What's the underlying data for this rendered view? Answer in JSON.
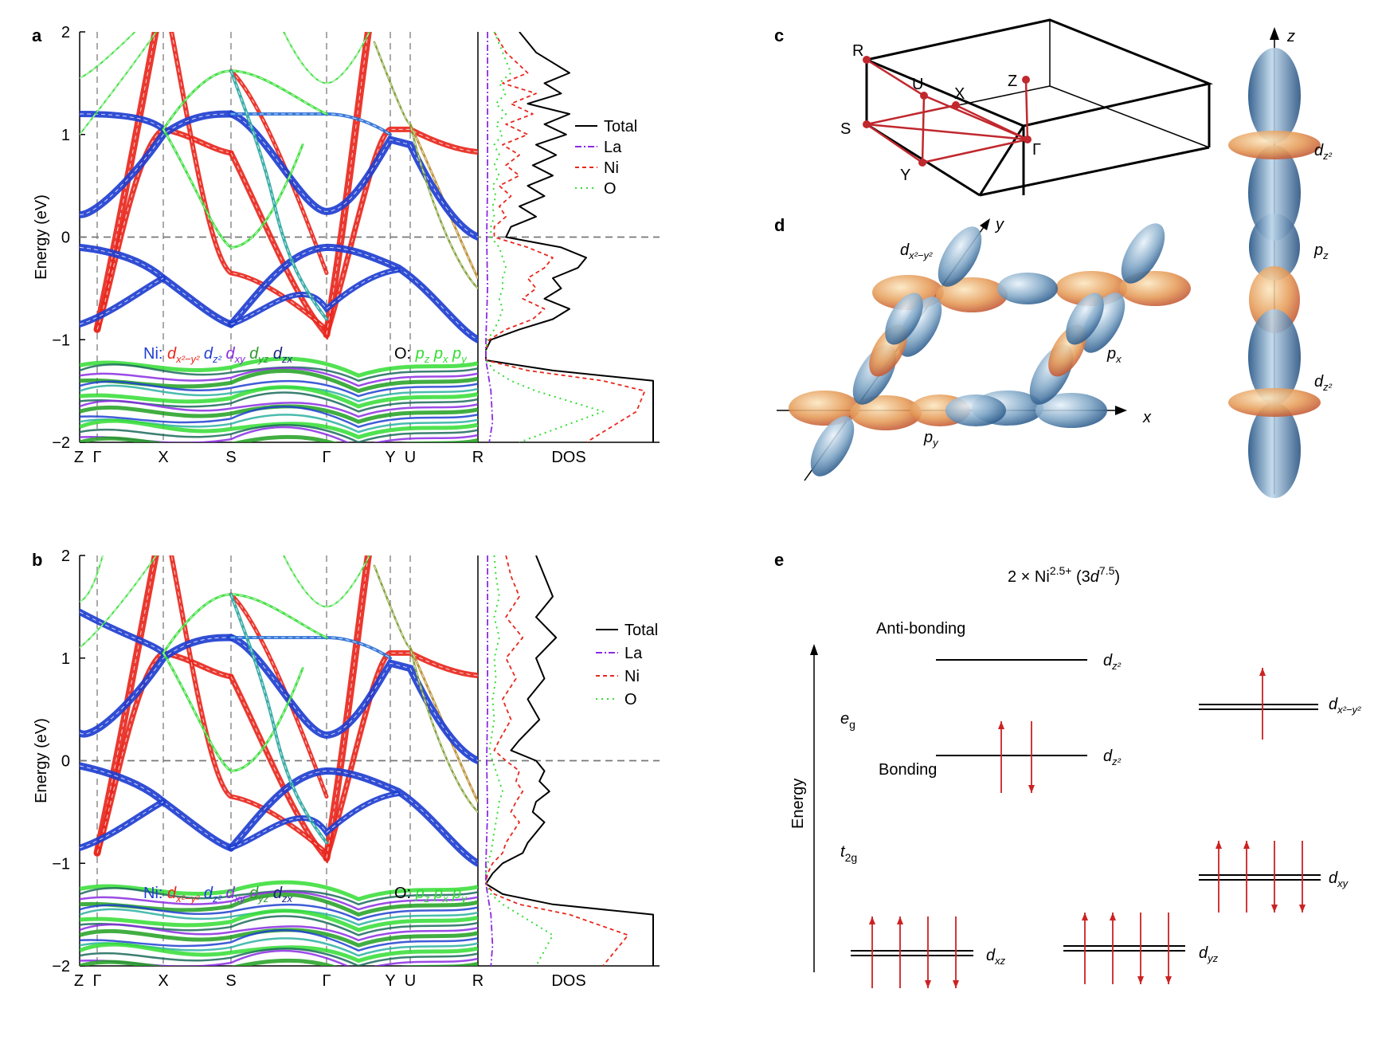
{
  "panels": {
    "a": "a",
    "b": "b",
    "c": "c",
    "d": "d",
    "e": "e"
  },
  "colors": {
    "dx2y2": "#e8281e",
    "dz2": "#1f3fd0",
    "dxy": "#8a2be2",
    "dyz": "#2e9a2e",
    "dzx": "#1a237e",
    "O": "#33dd33",
    "La": "#8a2be2",
    "Ni": "#e8281e",
    "total": "#000000",
    "bz": "#c0282e",
    "arrow": "#cc2222"
  },
  "chart_data": [
    {
      "type": "line",
      "panel": "a",
      "ylabel": "Energy (eV)",
      "xlabel": "DOS",
      "ylim": [
        -2,
        2
      ],
      "yticks": [
        2,
        1,
        0,
        -1,
        -2
      ],
      "kpath": [
        "Z",
        "Γ",
        "X",
        "S",
        "Γ",
        "Y",
        "U",
        "R"
      ],
      "legend": [
        {
          "name": "Total",
          "style": "solid"
        },
        {
          "name": "La",
          "style": "dashdot"
        },
        {
          "name": "Ni",
          "style": "dashed"
        },
        {
          "name": "O",
          "style": "dotted"
        }
      ],
      "orbital_legend": {
        "ni_label": "Ni:",
        "o_label": "O:"
      },
      "series": [
        {
          "name": "Total",
          "e": [
            2,
            1.8,
            1.6,
            1.5,
            1.4,
            1.3,
            1.2,
            1.1,
            1.0,
            0.9,
            0.8,
            0.7,
            0.6,
            0.5,
            0.4,
            0.3,
            0.2,
            0.1,
            0.0,
            -0.1,
            -0.2,
            -0.3,
            -0.4,
            -0.5,
            -0.6,
            -0.7,
            -0.8,
            -0.9,
            -1.0,
            -1.1,
            -1.2,
            -1.3,
            -1.4,
            -1.5,
            -1.7,
            -2.0
          ],
          "v": [
            0.2,
            0.3,
            0.5,
            0.35,
            0.45,
            0.25,
            0.5,
            0.35,
            0.48,
            0.3,
            0.42,
            0.28,
            0.4,
            0.25,
            0.35,
            0.2,
            0.3,
            0.15,
            0.12,
            0.45,
            0.6,
            0.55,
            0.4,
            0.45,
            0.35,
            0.5,
            0.4,
            0.2,
            0.03,
            0.0,
            0.0,
            0.4,
            1.0,
            1.0,
            1.0,
            1.0
          ]
        },
        {
          "name": "Ni",
          "e": [
            2,
            1.8,
            1.6,
            1.5,
            1.4,
            1.3,
            1.2,
            1.1,
            1.0,
            0.9,
            0.8,
            0.7,
            0.6,
            0.5,
            0.4,
            0.3,
            0.2,
            0.1,
            0.0,
            -0.1,
            -0.2,
            -0.3,
            -0.4,
            -0.5,
            -0.6,
            -0.7,
            -0.8,
            -0.9,
            -1.0,
            -1.1,
            -1.2,
            -1.3,
            -1.4,
            -1.5,
            -1.7,
            -2.0
          ],
          "v": [
            0.05,
            0.12,
            0.25,
            0.1,
            0.3,
            0.15,
            0.28,
            0.12,
            0.25,
            0.1,
            0.2,
            0.12,
            0.2,
            0.08,
            0.15,
            0.08,
            0.12,
            0.05,
            0.05,
            0.25,
            0.4,
            0.35,
            0.25,
            0.3,
            0.22,
            0.35,
            0.28,
            0.12,
            0.02,
            0.0,
            0.0,
            0.25,
            0.7,
            0.95,
            0.9,
            0.6
          ]
        },
        {
          "name": "O",
          "e": [
            2,
            1.8,
            1.6,
            1.5,
            1.4,
            1.3,
            1.2,
            1.1,
            1.0,
            0.9,
            0.8,
            0.7,
            0.6,
            0.5,
            0.4,
            0.3,
            0.2,
            0.1,
            0.0,
            -0.1,
            -0.2,
            -0.3,
            -0.4,
            -0.5,
            -0.6,
            -0.7,
            -0.8,
            -0.9,
            -1.0,
            -1.1,
            -1.2,
            -1.3,
            -1.4,
            -1.5,
            -1.7,
            -2.0
          ],
          "v": [
            0.05,
            0.1,
            0.15,
            0.08,
            0.12,
            0.06,
            0.12,
            0.06,
            0.1,
            0.05,
            0.08,
            0.05,
            0.08,
            0.04,
            0.06,
            0.04,
            0.05,
            0.03,
            0.03,
            0.08,
            0.1,
            0.12,
            0.1,
            0.1,
            0.08,
            0.1,
            0.08,
            0.05,
            0.01,
            0.0,
            0.0,
            0.05,
            0.15,
            0.3,
            0.7,
            0.2
          ]
        },
        {
          "name": "La",
          "e": [
            2,
            1.5,
            1.0,
            0.5,
            0.0,
            -0.5,
            -1.0,
            -1.2,
            -1.5,
            -1.8,
            -2.0
          ],
          "v": [
            0.01,
            0.01,
            0.01,
            0.01,
            0.005,
            0.01,
            0.0,
            0.0,
            0.03,
            0.04,
            0.02
          ]
        }
      ]
    },
    {
      "type": "line",
      "panel": "b",
      "ylabel": "Energy (eV)",
      "xlabel": "DOS",
      "ylim": [
        -2,
        2
      ],
      "yticks": [
        2,
        1,
        0,
        -1,
        -2
      ],
      "kpath": [
        "Z",
        "Γ",
        "X",
        "S",
        "Γ",
        "Y",
        "U",
        "R"
      ],
      "legend": [
        {
          "name": "Total",
          "style": "solid"
        },
        {
          "name": "La",
          "style": "dashdot"
        },
        {
          "name": "Ni",
          "style": "dashed"
        },
        {
          "name": "O",
          "style": "dotted"
        }
      ],
      "orbital_legend": {
        "ni_label": "Ni:",
        "o_label": "O:"
      },
      "series": [
        {
          "name": "Total",
          "e": [
            2,
            1.8,
            1.6,
            1.4,
            1.2,
            1.0,
            0.8,
            0.6,
            0.4,
            0.2,
            0.1,
            0.0,
            -0.1,
            -0.2,
            -0.3,
            -0.4,
            -0.5,
            -0.6,
            -0.7,
            -0.8,
            -0.9,
            -1.0,
            -1.1,
            -1.2,
            -1.3,
            -1.4,
            -1.5,
            -1.7,
            -2.0
          ],
          "v": [
            0.3,
            0.35,
            0.4,
            0.3,
            0.42,
            0.3,
            0.35,
            0.25,
            0.32,
            0.2,
            0.15,
            0.3,
            0.35,
            0.32,
            0.38,
            0.3,
            0.28,
            0.35,
            0.3,
            0.25,
            0.22,
            0.1,
            0.04,
            0.0,
            0.1,
            0.4,
            1.0,
            1.0,
            1.0
          ]
        },
        {
          "name": "Ni",
          "e": [
            2,
            1.8,
            1.6,
            1.4,
            1.2,
            1.0,
            0.8,
            0.6,
            0.4,
            0.2,
            0.1,
            0.0,
            -0.1,
            -0.2,
            -0.3,
            -0.4,
            -0.5,
            -0.6,
            -0.7,
            -0.8,
            -0.9,
            -1.0,
            -1.1,
            -1.2,
            -1.3,
            -1.4,
            -1.5,
            -1.7,
            -2.0
          ],
          "v": [
            0.12,
            0.15,
            0.2,
            0.12,
            0.22,
            0.12,
            0.18,
            0.1,
            0.15,
            0.08,
            0.05,
            0.12,
            0.2,
            0.18,
            0.22,
            0.18,
            0.15,
            0.2,
            0.16,
            0.12,
            0.1,
            0.04,
            0.01,
            0.0,
            0.05,
            0.2,
            0.5,
            0.85,
            0.7
          ]
        },
        {
          "name": "O",
          "e": [
            2,
            1.8,
            1.6,
            1.4,
            1.2,
            1.0,
            0.8,
            0.6,
            0.4,
            0.2,
            0.1,
            0.0,
            -0.1,
            -0.2,
            -0.3,
            -0.4,
            -0.5,
            -0.6,
            -0.7,
            -0.8,
            -0.9,
            -1.0,
            -1.1,
            -1.2,
            -1.3,
            -1.4,
            -1.5,
            -1.7,
            -2.0
          ],
          "v": [
            0.05,
            0.06,
            0.08,
            0.05,
            0.08,
            0.05,
            0.06,
            0.04,
            0.05,
            0.03,
            0.02,
            0.04,
            0.06,
            0.08,
            0.1,
            0.08,
            0.07,
            0.06,
            0.05,
            0.04,
            0.03,
            0.01,
            0.0,
            0.0,
            0.03,
            0.1,
            0.2,
            0.4,
            0.3
          ]
        },
        {
          "name": "La",
          "e": [
            2,
            1.5,
            1.0,
            0.5,
            0.0,
            -0.5,
            -1.0,
            -1.2,
            -1.5,
            -1.8,
            -2.0
          ],
          "v": [
            0.01,
            0.01,
            0.01,
            0.01,
            0.005,
            0.01,
            0.0,
            0.0,
            0.03,
            0.04,
            0.03
          ]
        }
      ]
    }
  ],
  "bz": {
    "points": [
      "R",
      "U",
      "X",
      "Z",
      "S",
      "Γ",
      "Y"
    ]
  },
  "orbitals": {
    "dx2y2_label": "x²−y²",
    "dz2_label": "z²",
    "pz_label": "z",
    "px_label": "x",
    "py_label": "y",
    "axis_x": "x",
    "axis_y": "y",
    "axis_z": "z"
  },
  "level_diagram": {
    "title_prefix": "2 × Ni",
    "title_sup": "2.5+",
    "title_mid": " (3",
    "title_d": "d",
    "title_sup2": "7.5",
    "title_end": ")",
    "anti_bonding": "Anti-bonding",
    "bonding": "Bonding",
    "eg_main": "e",
    "eg_sub": "g",
    "t2g_main": "t",
    "t2g_sub": "2g",
    "energy_axis": "Energy",
    "sub_z2": "z²",
    "sub_x2y2": "x²−y²",
    "sub_xy": "xy",
    "sub_xz": "xz",
    "sub_yz": "yz"
  }
}
